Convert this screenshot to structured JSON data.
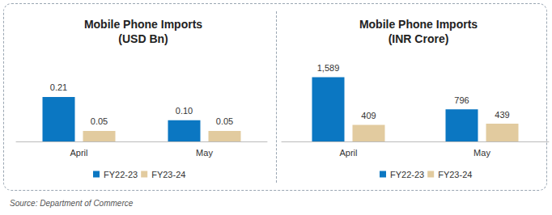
{
  "chart_data": [
    {
      "type": "bar",
      "title": "Mobile Phone Imports",
      "subtitle": "(USD Bn)",
      "categories": [
        "April",
        "May"
      ],
      "series": [
        {
          "name": "FY22-23",
          "color": "#0b77c2",
          "values": [
            0.21,
            0.1
          ],
          "value_labels": [
            "0.21",
            "0.10"
          ]
        },
        {
          "name": "FY23-24",
          "color": "#e2cb9f",
          "values": [
            0.05,
            0.05
          ],
          "value_labels": [
            "0.05",
            "0.05"
          ]
        }
      ],
      "ylim": [
        0,
        0.4
      ],
      "grid": false,
      "data_labels": true,
      "tick_labels": "x",
      "legend": "bottom"
    },
    {
      "type": "bar",
      "title": "Mobile Phone Imports",
      "subtitle": "(INR Crore)",
      "categories": [
        "April",
        "May"
      ],
      "series": [
        {
          "name": "FY22-23",
          "color": "#0b77c2",
          "values": [
            1589,
            796
          ],
          "value_labels": [
            "1,589",
            "796"
          ]
        },
        {
          "name": "FY23-24",
          "color": "#e2cb9f",
          "values": [
            409,
            439
          ],
          "value_labels": [
            "409",
            "439"
          ]
        }
      ],
      "ylim": [
        0,
        2100
      ],
      "grid": false,
      "data_labels": true,
      "tick_labels": "x",
      "legend": "bottom"
    }
  ],
  "source": "Source: Department of Commerce"
}
